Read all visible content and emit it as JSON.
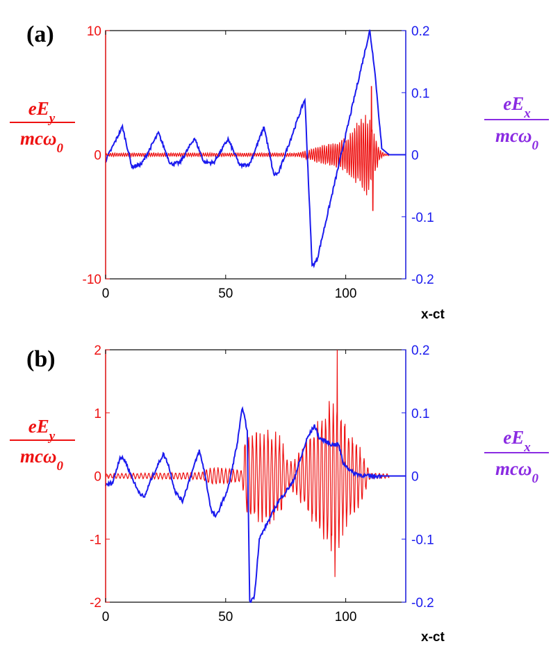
{
  "colors": {
    "ey": "#ee1111",
    "ex": "#1a1aee",
    "ex_label": "#8a2be2",
    "axis": "#000000"
  },
  "labels": {
    "ey_num": "eE_y",
    "ey_den": "mcω_0",
    "ex_num": "eE_x",
    "ex_den": "mcω_0"
  },
  "chart_data": [
    {
      "type": "line",
      "panel_label": "(a)",
      "xlabel": "x-ct",
      "xlim": [
        0,
        125
      ],
      "xticks": [
        0,
        50,
        100
      ],
      "y_left": {
        "lim": [
          -10,
          10
        ],
        "ticks": [
          -10,
          0,
          10
        ],
        "tick_labels": [
          "-10",
          "0",
          "10"
        ]
      },
      "y_right": {
        "lim": [
          -0.2,
          0.2
        ],
        "ticks": [
          -0.2,
          -0.1,
          0,
          0.1,
          0.2
        ],
        "tick_labels": [
          "-0.2",
          "-0.1",
          "0",
          "0.1",
          "0.2"
        ]
      },
      "series": [
        {
          "axis": "right",
          "color": "#1a1aee",
          "points": [
            [
              0,
              -0.01
            ],
            [
              7,
              0.045
            ],
            [
              11,
              -0.02
            ],
            [
              15,
              -0.015
            ],
            [
              22,
              0.035
            ],
            [
              27,
              -0.015
            ],
            [
              31,
              -0.013
            ],
            [
              37,
              0.027
            ],
            [
              41,
              -0.012
            ],
            [
              45,
              -0.013
            ],
            [
              51,
              0.025
            ],
            [
              56,
              -0.018
            ],
            [
              60,
              -0.015
            ],
            [
              66,
              0.045
            ],
            [
              70,
              -0.032
            ],
            [
              72,
              -0.03
            ],
            [
              83,
              0.09
            ],
            [
              86,
              -0.18
            ],
            [
              88,
              -0.17
            ],
            [
              110,
              0.2
            ],
            [
              112,
              0.14
            ],
            [
              115,
              0.01
            ],
            [
              118,
              0
            ],
            [
              125,
              0
            ]
          ]
        },
        {
          "axis": "left",
          "color": "#ee1111",
          "oscillation": true,
          "period": 0.9,
          "envelope": [
            [
              0,
              0.15
            ],
            [
              80,
              0.15
            ],
            [
              92,
              0.9
            ],
            [
              100,
              1.5
            ],
            [
              106,
              3
            ],
            [
              109,
              3.5
            ],
            [
              111,
              2.5
            ],
            [
              114,
              0.5
            ],
            [
              116,
              0.1
            ],
            [
              125,
              0.05
            ]
          ],
          "spikes": [
            [
              110.7,
              5.5
            ],
            [
              111.3,
              -4.5
            ]
          ]
        }
      ]
    },
    {
      "type": "line",
      "panel_label": "(b)",
      "xlabel": "x-ct",
      "xlim": [
        0,
        125
      ],
      "xticks": [
        0,
        50,
        100
      ],
      "y_left": {
        "lim": [
          -2,
          2
        ],
        "ticks": [
          -2,
          -1,
          0,
          1,
          2
        ],
        "tick_labels": [
          "-2",
          "-1",
          "0",
          "1",
          "2"
        ]
      },
      "y_right": {
        "lim": [
          -0.2,
          0.2
        ],
        "ticks": [
          -0.2,
          -0.1,
          0,
          0.1,
          0.2
        ],
        "tick_labels": [
          "-0.2",
          "-0.1",
          "0",
          "0.1",
          "0.2"
        ]
      },
      "series": [
        {
          "axis": "right",
          "color": "#1a1aee",
          "points": [
            [
              0,
              -0.015
            ],
            [
              3,
              -0.01
            ],
            [
              6,
              0.03
            ],
            [
              8,
              0.025
            ],
            [
              13,
              -0.02
            ],
            [
              16,
              -0.035
            ],
            [
              19,
              -0.005
            ],
            [
              24,
              0.035
            ],
            [
              26,
              0.02
            ],
            [
              29,
              -0.025
            ],
            [
              32,
              -0.04
            ],
            [
              35,
              -0.005
            ],
            [
              39,
              0.04
            ],
            [
              41,
              0.01
            ],
            [
              44,
              -0.055
            ],
            [
              46,
              -0.065
            ],
            [
              51,
              -0.02
            ],
            [
              55,
              0.055
            ],
            [
              57,
              0.11
            ],
            [
              59,
              0.07
            ],
            [
              60,
              -0.2
            ],
            [
              62,
              -0.19
            ],
            [
              64,
              -0.1
            ],
            [
              72,
              -0.04
            ],
            [
              78,
              -0.01
            ],
            [
              84,
              0.06
            ],
            [
              87,
              0.08
            ],
            [
              89,
              0.06
            ],
            [
              94,
              0.05
            ],
            [
              97,
              0.05
            ],
            [
              99,
              0.02
            ],
            [
              103,
              0.005
            ],
            [
              108,
              0
            ],
            [
              125,
              0
            ]
          ]
        },
        {
          "axis": "left",
          "color": "#ee1111",
          "oscillation": true,
          "period": 1.6,
          "envelope": [
            [
              0,
              0.04
            ],
            [
              40,
              0.06
            ],
            [
              44,
              0.15
            ],
            [
              57,
              0.1
            ],
            [
              58,
              0.7
            ],
            [
              62,
              0.75
            ],
            [
              68,
              0.8
            ],
            [
              73,
              0.7
            ],
            [
              76,
              0.2
            ],
            [
              80,
              0.35
            ],
            [
              86,
              0.8
            ],
            [
              91,
              1.1
            ],
            [
              95,
              1.4
            ],
            [
              98,
              1.1
            ],
            [
              101,
              0.8
            ],
            [
              107,
              0.4
            ],
            [
              110,
              0.05
            ],
            [
              125,
              0.02
            ]
          ],
          "spikes": [
            [
              96.5,
              2.0
            ],
            [
              95.5,
              -1.6
            ]
          ]
        }
      ]
    }
  ]
}
